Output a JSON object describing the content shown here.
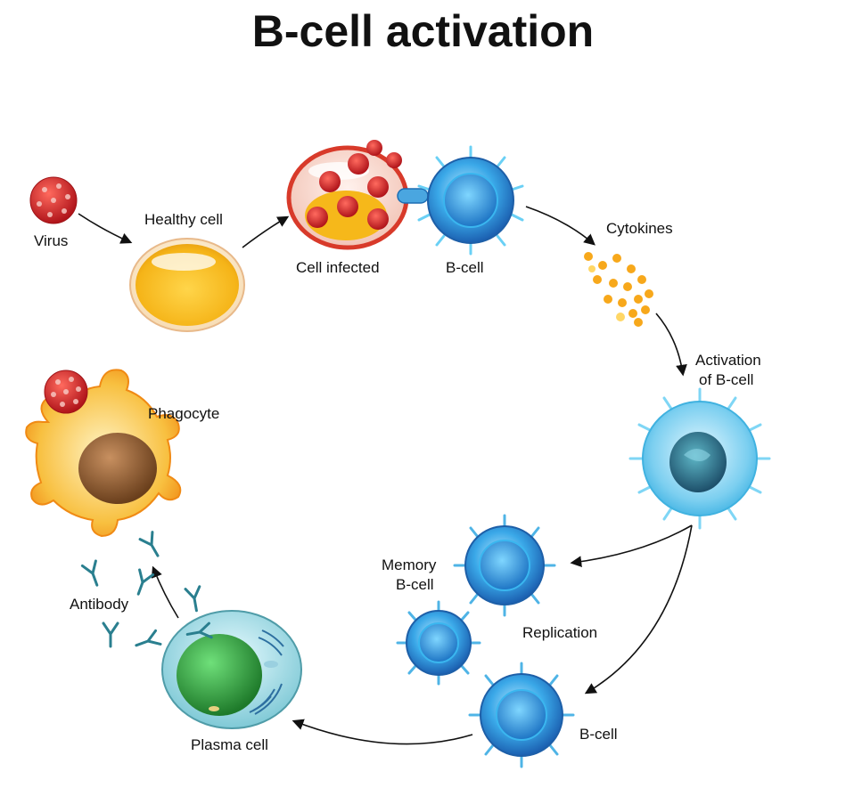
{
  "title": "B-cell activation",
  "labels": {
    "virus": "Virus",
    "healthy_cell": "Healthy cell",
    "cell_infected": "Cell infected",
    "b_cell_top": "B-cell",
    "cytokines": "Cytokines",
    "activation_line1": "Activation",
    "activation_line2": "of B-cell",
    "memory_line1": "Memory",
    "memory_line2": "B-cell",
    "replication": "Replication",
    "b_cell_bottom": "B-cell",
    "plasma_cell": "Plasma cell",
    "antibody": "Antibody",
    "phagocyte": "Phagocyte"
  },
  "colors": {
    "virus": "#d42a2a",
    "b_cell": "#2a8fd6",
    "activated": "#7fd0f0",
    "healthy": "#f7c23a",
    "plasma": "#2f9e3a",
    "phagocyte": "#f6a623",
    "nucleus_brown": "#8a5a2b",
    "antibody": "#2a7f8f",
    "cytokine": "#f5a623"
  }
}
